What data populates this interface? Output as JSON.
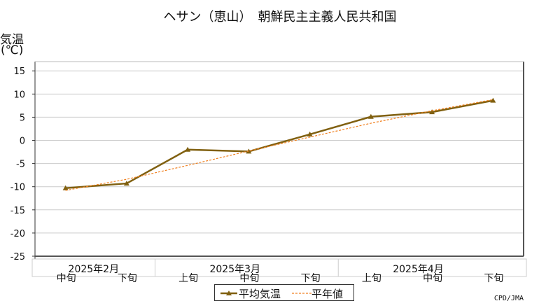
{
  "chart_data": {
    "type": "line",
    "title": "ヘサン（恵山）　朝鮮民主主義人民共和国",
    "ylabel_line1": "気温",
    "ylabel_line2": "(℃)",
    "ylim": [
      -25,
      17
    ],
    "yticks": [
      15,
      10,
      5,
      0,
      -5,
      -10,
      -15,
      -20,
      -25
    ],
    "month_labels": [
      "2025年2月",
      "2025年3月",
      "2025年4月"
    ],
    "dekad_labels": [
      "中旬",
      "下旬",
      "上旬",
      "中旬",
      "下旬",
      "上旬",
      "中旬",
      "下旬"
    ],
    "series": [
      {
        "name": "平均気温",
        "color": "#806010",
        "style": "solid-triangle",
        "values": [
          -10.3,
          -9.3,
          -2.0,
          -2.4,
          1.3,
          5.1,
          6.1,
          8.6
        ]
      },
      {
        "name": "平年値",
        "color": "#f08020",
        "style": "dashed",
        "values": [
          -10.8,
          -8.4,
          -5.4,
          -2.3,
          0.7,
          3.7,
          6.4,
          8.8
        ]
      }
    ],
    "grid": true,
    "legend_position": "bottom-center"
  },
  "credit": "CPD/JMA"
}
